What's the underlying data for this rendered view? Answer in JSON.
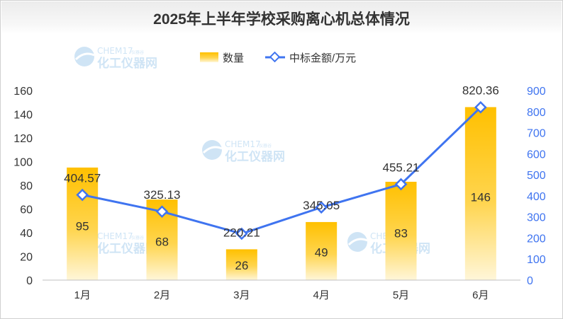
{
  "chart_data": {
    "type": "bar+line",
    "title": "2025年上半年学校采购离心机总体情况",
    "categories": [
      "1月",
      "2月",
      "3月",
      "4月",
      "5月",
      "6月"
    ],
    "series": [
      {
        "name": "数量",
        "type": "bar",
        "axis": "left",
        "values": [
          95,
          68,
          26,
          49,
          83,
          146
        ],
        "color": "#ffc000"
      },
      {
        "name": "中标金额/万元",
        "type": "line",
        "axis": "right",
        "values": [
          404.57,
          325.13,
          220.21,
          345.05,
          455.21,
          820.36
        ],
        "color": "#3f74f0"
      }
    ],
    "y_left": {
      "min": 0,
      "max": 160,
      "step": 20,
      "ticks": [
        "0",
        "20",
        "40",
        "60",
        "80",
        "100",
        "120",
        "140",
        "160"
      ],
      "color": "#333333"
    },
    "y_right": {
      "min": 0,
      "max": 900,
      "step": 100,
      "ticks": [
        "0",
        "100",
        "200",
        "300",
        "400",
        "500",
        "600",
        "700",
        "800",
        "900"
      ],
      "color": "#3f74f0"
    },
    "legend_position": "top-center",
    "grid": false
  },
  "watermark": {
    "brand": "CHEM17",
    "tagline": "仪器谷",
    "name": "化工仪器网"
  }
}
